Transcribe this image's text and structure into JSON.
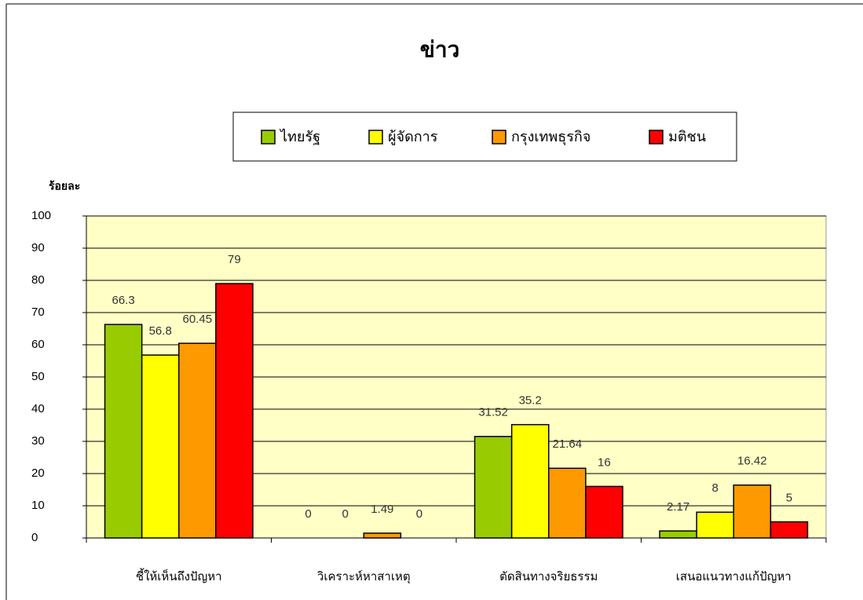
{
  "chart_data": {
    "type": "bar",
    "title": "ข่าว",
    "y_label": "ร้อยละ",
    "categories": [
      "ชี้ให้เห็นถึงปัญหา",
      "วิเคราะห์หาสาเหตุ",
      "ตัดสินทางจริยธรรม",
      "เสนอแนวทางแก้ปัญหา"
    ],
    "series": [
      {
        "name": "ไทยรัฐ",
        "color": "#99cc00",
        "values": [
          66.3,
          0,
          31.52,
          2.17
        ]
      },
      {
        "name": "ผู้จัดการ",
        "color": "#ffff00",
        "values": [
          56.8,
          0,
          35.2,
          8
        ]
      },
      {
        "name": "กรุงเทพธุรกิจ",
        "color": "#ff9900",
        "values": [
          60.45,
          1.49,
          21.64,
          16.42
        ]
      },
      {
        "name": "มติชน",
        "color": "#ff0000",
        "values": [
          79,
          0,
          16,
          5
        ]
      }
    ],
    "ylim": [
      0,
      100
    ],
    "yticks": [
      0,
      10,
      20,
      30,
      40,
      50,
      60,
      70,
      80,
      90,
      100
    ],
    "grid": true,
    "legend": "top",
    "background": "#ffffc6"
  }
}
